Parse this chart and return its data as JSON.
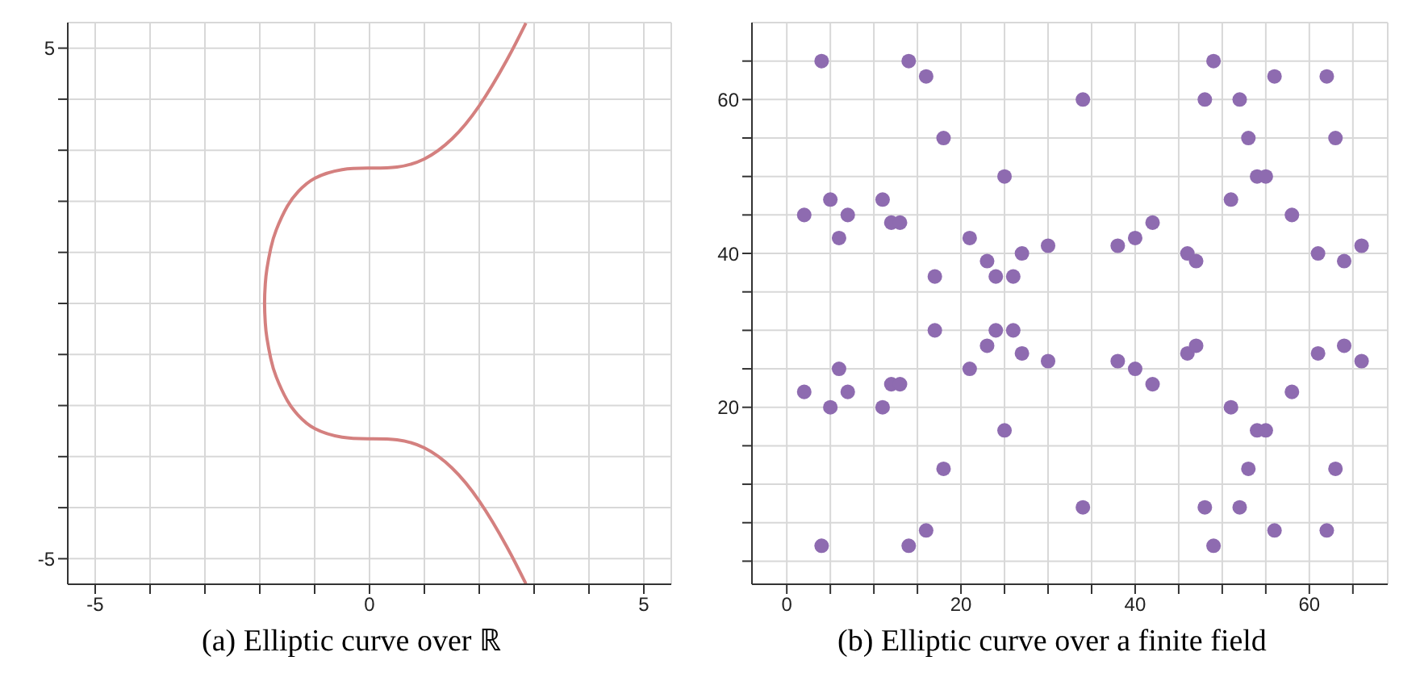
{
  "chart_data": [
    {
      "type": "line",
      "title": "(a) Elliptic curve over ℝ",
      "marker": "none",
      "series": [
        {
          "color": "#d4807f",
          "x": [
            2.85,
            2.5,
            2,
            1.5,
            1,
            0.5,
            0,
            -0.5,
            -1,
            -1.3,
            -1.5,
            -1.7,
            -1.8,
            -1.87,
            -1.9,
            -1.913,
            -1.9,
            -1.87,
            -1.8,
            -1.7,
            -1.5,
            -1.3,
            -1,
            -0.5,
            0,
            0.5,
            1,
            1.5,
            2,
            2.5,
            2.85
          ],
          "values": [
            5.49,
            4.76,
            3.87,
            3.22,
            2.83,
            2.67,
            2.65,
            2.62,
            2.45,
            2.19,
            1.9,
            1.44,
            1.08,
            0.68,
            0.38,
            0,
            -0.38,
            -0.68,
            -1.08,
            -1.44,
            -1.9,
            -2.19,
            -2.45,
            -2.62,
            -2.65,
            -2.67,
            -2.83,
            -3.22,
            -3.87,
            -4.76,
            -5.49
          ]
        }
      ],
      "xlim": [
        -5.5,
        5.5
      ],
      "ylim": [
        -5.5,
        5.5
      ],
      "xticks": [
        {
          "value": -5,
          "label": "-5"
        },
        {
          "value": -4,
          "label": null
        },
        {
          "value": -3,
          "label": null
        },
        {
          "value": -2,
          "label": null
        },
        {
          "value": -1,
          "label": null
        },
        0,
        {
          "value": 1,
          "label": null
        },
        {
          "value": 2,
          "label": null
        },
        {
          "value": 3,
          "label": null
        },
        {
          "value": 4,
          "label": null
        },
        5
      ],
      "yticks": [
        {
          "value": -5,
          "label": "-5"
        },
        {
          "value": -4,
          "label": null
        },
        {
          "value": -3,
          "label": null
        },
        {
          "value": -2,
          "label": null
        },
        {
          "value": -1,
          "label": null
        },
        {
          "value": 0,
          "label": null
        },
        {
          "value": 1,
          "label": null
        },
        {
          "value": 2,
          "label": null
        },
        {
          "value": 3,
          "label": null
        },
        {
          "value": 4,
          "label": null
        },
        5
      ],
      "grid": true
    },
    {
      "type": "scatter",
      "title": "(b) Elliptic curve over a finite field",
      "marker": "circle",
      "series": [
        {
          "color": "#8e6bb0",
          "x": [
            2,
            4,
            5,
            6,
            7,
            11,
            12,
            13,
            14,
            16,
            17,
            18,
            21,
            23,
            24,
            25,
            26,
            27,
            30,
            34,
            38,
            40,
            42,
            46,
            47,
            48,
            49,
            51,
            52,
            53,
            54,
            55,
            56,
            58,
            61,
            62,
            63,
            64,
            66,
            2,
            4,
            5,
            6,
            7,
            11,
            12,
            13,
            14,
            16,
            17,
            18,
            21,
            23,
            24,
            25,
            26,
            27,
            30,
            34,
            38,
            40,
            42,
            46,
            47,
            48,
            49,
            51,
            52,
            53,
            54,
            55,
            56,
            58,
            61,
            62,
            63,
            64,
            66
          ],
          "values": [
            22,
            2,
            20,
            25,
            22,
            20,
            23,
            23,
            2,
            4,
            30,
            12,
            25,
            28,
            30,
            17,
            30,
            27,
            26,
            7,
            26,
            25,
            23,
            27,
            28,
            7,
            2,
            20,
            7,
            12,
            17,
            17,
            4,
            22,
            27,
            4,
            12,
            28,
            26,
            45,
            65,
            47,
            42,
            45,
            47,
            44,
            44,
            65,
            63,
            37,
            55,
            42,
            39,
            37,
            50,
            37,
            40,
            41,
            60,
            41,
            42,
            44,
            40,
            39,
            60,
            65,
            47,
            60,
            55,
            50,
            50,
            63,
            45,
            40,
            63,
            55,
            39,
            41
          ]
        }
      ],
      "xlim": [
        -4,
        69
      ],
      "ylim": [
        -3,
        70
      ],
      "xticks": [
        0,
        {
          "value": 5,
          "label": null
        },
        {
          "value": 10,
          "label": null
        },
        {
          "value": 15,
          "label": null
        },
        20,
        {
          "value": 25,
          "label": null
        },
        {
          "value": 30,
          "label": null
        },
        {
          "value": 35,
          "label": null
        },
        40,
        {
          "value": 45,
          "label": null
        },
        {
          "value": 50,
          "label": null
        },
        {
          "value": 55,
          "label": null
        },
        60,
        {
          "value": 65,
          "label": null
        }
      ],
      "yticks": [
        {
          "value": 0,
          "label": null
        },
        {
          "value": 5,
          "label": null
        },
        {
          "value": 10,
          "label": null
        },
        {
          "value": 15,
          "label": null
        },
        20,
        {
          "value": 25,
          "label": null
        },
        {
          "value": 30,
          "label": null
        },
        {
          "value": 35,
          "label": null
        },
        40,
        {
          "value": 45,
          "label": null
        },
        {
          "value": 50,
          "label": null
        },
        {
          "value": 55,
          "label": null
        },
        60,
        {
          "value": 65,
          "label": null
        }
      ],
      "grid": true
    }
  ]
}
